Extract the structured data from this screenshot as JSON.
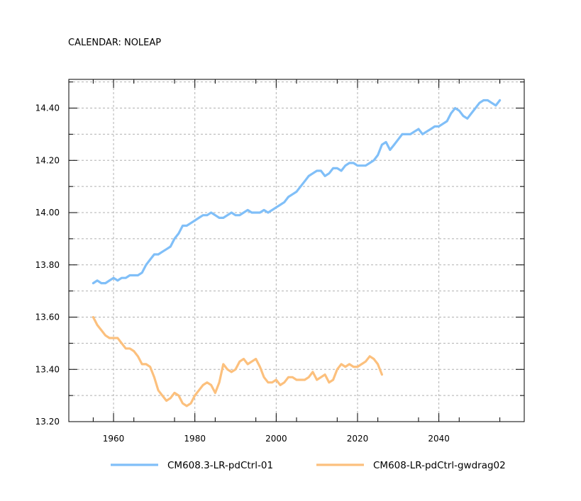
{
  "chart_data": {
    "type": "line",
    "title": "CALENDAR: NOLEAP",
    "xlabel": "",
    "ylabel": "",
    "xlim": [
      1949,
      2061
    ],
    "ylim": [
      13.2,
      14.51
    ],
    "x_ticks": [
      1960,
      1980,
      2000,
      2020,
      2040
    ],
    "x_tick_labels": [
      "1960",
      "1980",
      "2000",
      "2020",
      "2040"
    ],
    "y_ticks": [
      13.2,
      13.4,
      13.6,
      13.8,
      14.0,
      14.2,
      14.4
    ],
    "y_tick_labels": [
      "13.20",
      "13.40",
      "13.60",
      "13.80",
      "14.00",
      "14.20",
      "14.40"
    ],
    "grid": true,
    "legend_position": "bottom",
    "series": [
      {
        "name": "CM608.3-LR-pdCtrl-01",
        "color": "#80bff8",
        "x": [
          1955,
          1956,
          1957,
          1958,
          1959,
          1960,
          1961,
          1962,
          1963,
          1964,
          1965,
          1966,
          1967,
          1968,
          1969,
          1970,
          1971,
          1972,
          1973,
          1974,
          1975,
          1976,
          1977,
          1978,
          1979,
          1980,
          1981,
          1982,
          1983,
          1984,
          1985,
          1986,
          1987,
          1988,
          1989,
          1990,
          1991,
          1992,
          1993,
          1994,
          1995,
          1996,
          1997,
          1998,
          1999,
          2000,
          2001,
          2002,
          2003,
          2004,
          2005,
          2006,
          2007,
          2008,
          2009,
          2010,
          2011,
          2012,
          2013,
          2014,
          2015,
          2016,
          2017,
          2018,
          2019,
          2020,
          2021,
          2022,
          2023,
          2024,
          2025,
          2026,
          2027,
          2028,
          2029,
          2030,
          2031,
          2032,
          2033,
          2034,
          2035,
          2036,
          2037,
          2038,
          2039,
          2040,
          2041,
          2042,
          2043,
          2044,
          2045,
          2046,
          2047,
          2048,
          2049,
          2050,
          2051,
          2052,
          2053,
          2054,
          2055
        ],
        "y": [
          13.73,
          13.74,
          13.73,
          13.73,
          13.74,
          13.75,
          13.74,
          13.75,
          13.75,
          13.76,
          13.76,
          13.76,
          13.77,
          13.8,
          13.82,
          13.84,
          13.84,
          13.85,
          13.86,
          13.87,
          13.9,
          13.92,
          13.95,
          13.95,
          13.96,
          13.97,
          13.98,
          13.99,
          13.99,
          14.0,
          13.99,
          13.98,
          13.98,
          13.99,
          14.0,
          13.99,
          13.99,
          14.0,
          14.01,
          14.0,
          14.0,
          14.0,
          14.01,
          14.0,
          14.01,
          14.02,
          14.03,
          14.04,
          14.06,
          14.07,
          14.08,
          14.1,
          14.12,
          14.14,
          14.15,
          14.16,
          14.16,
          14.14,
          14.15,
          14.17,
          14.17,
          14.16,
          14.18,
          14.19,
          14.19,
          14.18,
          14.18,
          14.18,
          14.19,
          14.2,
          14.22,
          14.26,
          14.27,
          14.24,
          14.26,
          14.28,
          14.3,
          14.3,
          14.3,
          14.31,
          14.32,
          14.3,
          14.31,
          14.32,
          14.33,
          14.33,
          14.34,
          14.35,
          14.38,
          14.4,
          14.39,
          14.37,
          14.36,
          14.38,
          14.4,
          14.42,
          14.43,
          14.43,
          14.42,
          14.41,
          14.43
        ]
      },
      {
        "name": "CM608-LR-pdCtrl-gwdrag02",
        "color": "#fcc07d",
        "x": [
          1955,
          1956,
          1957,
          1958,
          1959,
          1960,
          1961,
          1962,
          1963,
          1964,
          1965,
          1966,
          1967,
          1968,
          1969,
          1970,
          1971,
          1972,
          1973,
          1974,
          1975,
          1976,
          1977,
          1978,
          1979,
          1980,
          1981,
          1982,
          1983,
          1984,
          1985,
          1986,
          1987,
          1988,
          1989,
          1990,
          1991,
          1992,
          1993,
          1994,
          1995,
          1996,
          1997,
          1998,
          1999,
          2000,
          2001,
          2002,
          2003,
          2004,
          2005,
          2006,
          2007,
          2008,
          2009,
          2010,
          2011,
          2012,
          2013,
          2014,
          2015,
          2016,
          2017,
          2018,
          2019,
          2020,
          2021,
          2022,
          2023,
          2024,
          2025,
          2026
        ],
        "y": [
          13.6,
          13.57,
          13.55,
          13.53,
          13.52,
          13.52,
          13.52,
          13.5,
          13.48,
          13.48,
          13.47,
          13.45,
          13.42,
          13.42,
          13.41,
          13.37,
          13.32,
          13.3,
          13.28,
          13.29,
          13.31,
          13.3,
          13.27,
          13.26,
          13.27,
          13.3,
          13.32,
          13.34,
          13.35,
          13.34,
          13.31,
          13.35,
          13.42,
          13.4,
          13.39,
          13.4,
          13.43,
          13.44,
          13.42,
          13.43,
          13.44,
          13.41,
          13.37,
          13.35,
          13.35,
          13.36,
          13.34,
          13.35,
          13.37,
          13.37,
          13.36,
          13.36,
          13.36,
          13.37,
          13.39,
          13.36,
          13.37,
          13.38,
          13.35,
          13.36,
          13.4,
          13.42,
          13.41,
          13.42,
          13.41,
          13.41,
          13.42,
          13.43,
          13.45,
          13.44,
          13.42,
          13.38
        ]
      }
    ]
  }
}
